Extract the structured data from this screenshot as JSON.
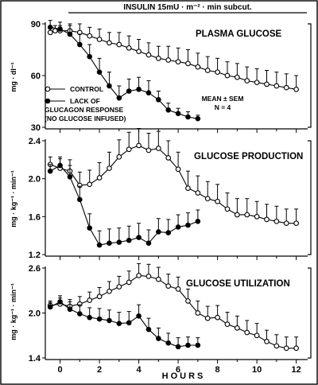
{
  "insulin_label": "INSULIN 15mU · m⁻² · min subcut.",
  "x_axis": {
    "label": "HOURS",
    "range": [
      -0.75,
      12.5
    ],
    "ticks": [
      0,
      2,
      4,
      6,
      8,
      10,
      12
    ],
    "tick_labels": [
      "0",
      "2",
      "4",
      "6",
      "8",
      "10",
      "12"
    ]
  },
  "legend": {
    "control": "CONTROL",
    "lack_line1": "LACK OF",
    "lack_line2": "GLUCAGON RESPONSE",
    "lack_line3": "(NO GLUCOSE INFUSED)"
  },
  "annotation": {
    "line1": "MEAN ± SEM",
    "line2": "N = 4"
  },
  "colors": {
    "ink": "#000000",
    "background": "#ffffff"
  },
  "chart_data": [
    {
      "type": "line",
      "title": "PLASMA GLUCOSE",
      "ylabel": "mg · dl⁻¹",
      "ylim": [
        30,
        90
      ],
      "yticks": [
        30,
        60,
        90
      ],
      "ytick_labels": [
        "30",
        "60",
        "90"
      ],
      "series": [
        {
          "name": "CONTROL",
          "marker": "open",
          "x": [
            -0.5,
            -0.25,
            0,
            0.5,
            1,
            1.5,
            2,
            2.5,
            3,
            3.5,
            4,
            4.5,
            5,
            5.5,
            6,
            6.5,
            7,
            7.5,
            8,
            8.5,
            9,
            9.5,
            10,
            10.5,
            11,
            11.5,
            12
          ],
          "y": [
            85,
            86,
            86,
            86,
            85,
            83,
            81,
            79,
            78,
            76,
            74,
            72,
            70,
            69,
            68,
            67,
            65,
            63,
            62,
            60,
            59,
            57,
            56,
            55,
            54,
            53,
            52
          ],
          "err": [
            3,
            3,
            3,
            4,
            5,
            5,
            6,
            6,
            7,
            7,
            7,
            7,
            7,
            8,
            8,
            8,
            8,
            8,
            8,
            8,
            8,
            8,
            8,
            8,
            8,
            8,
            8
          ]
        },
        {
          "name": "LACK OF GLUCAGON RESPONSE",
          "marker": "filled",
          "x": [
            -0.5,
            0,
            0.5,
            1,
            1.5,
            2,
            2.5,
            3,
            3.5,
            4,
            4.5,
            5,
            5.5,
            6,
            6.5,
            7
          ],
          "y": [
            88,
            87,
            84,
            78,
            71,
            62,
            54,
            47,
            51,
            52,
            50,
            46,
            40,
            38,
            36,
            35
          ],
          "err": [
            4,
            4,
            5,
            6,
            7,
            8,
            8,
            7,
            7,
            7,
            7,
            5,
            4,
            3,
            3,
            2
          ]
        }
      ]
    },
    {
      "type": "line",
      "title": "GLUCOSE PRODUCTION",
      "ylabel": "mg · kg⁻¹ · min⁻¹",
      "ylim": [
        1.2,
        2.4
      ],
      "yticks": [
        1.2,
        1.6,
        2.0,
        2.4
      ],
      "ytick_labels": [
        "1.2",
        "1.6",
        "2.0",
        "2.4"
      ],
      "series": [
        {
          "name": "CONTROL",
          "marker": "open",
          "x": [
            -0.5,
            0,
            0.5,
            1,
            1.5,
            2,
            2.5,
            3,
            3.5,
            4,
            4.5,
            5,
            5.5,
            6,
            6.5,
            7,
            7.5,
            8,
            8.5,
            9,
            9.5,
            10,
            10.5,
            11,
            11.5,
            12
          ],
          "y": [
            2.15,
            2.11,
            2.08,
            1.93,
            1.94,
            2.01,
            2.11,
            2.23,
            2.31,
            2.35,
            2.3,
            2.32,
            2.22,
            2.1,
            1.9,
            1.85,
            1.79,
            1.76,
            1.68,
            1.62,
            1.62,
            1.6,
            1.57,
            1.55,
            1.53,
            1.53
          ],
          "err": [
            0.08,
            0.1,
            0.12,
            0.14,
            0.15,
            0.16,
            0.17,
            0.18,
            0.18,
            0.18,
            0.18,
            0.18,
            0.18,
            0.18,
            0.18,
            0.18,
            0.18,
            0.18,
            0.17,
            0.17,
            0.17,
            0.16,
            0.16,
            0.16,
            0.15,
            0.15
          ]
        },
        {
          "name": "LACK OF GLUCAGON RESPONSE",
          "marker": "filled",
          "x": [
            -0.5,
            0,
            0.5,
            1,
            1.5,
            2,
            2.5,
            3,
            3.5,
            4,
            4.5,
            5,
            5.5,
            6,
            6.5,
            7
          ],
          "y": [
            2.08,
            2.14,
            2.02,
            1.78,
            1.48,
            1.3,
            1.32,
            1.33,
            1.35,
            1.38,
            1.32,
            1.44,
            1.43,
            1.49,
            1.51,
            1.55
          ],
          "err": [
            0.07,
            0.09,
            0.12,
            0.14,
            0.15,
            0.15,
            0.15,
            0.15,
            0.15,
            0.15,
            0.14,
            0.14,
            0.14,
            0.13,
            0.13,
            0.12
          ]
        }
      ]
    },
    {
      "type": "line",
      "title": "GLUCOSE UTILIZATION",
      "ylabel": "mg · kg⁻¹ · min⁻¹",
      "ylim": [
        1.4,
        2.6
      ],
      "yticks": [
        1.4,
        2.0,
        2.6
      ],
      "ytick_labels": [
        "1.4",
        "2.0",
        "2.6"
      ],
      "series": [
        {
          "name": "CONTROL",
          "marker": "open",
          "x": [
            -0.5,
            0,
            0.5,
            1,
            1.5,
            2,
            2.5,
            3,
            3.5,
            4,
            4.5,
            5,
            5.5,
            6,
            6.5,
            7,
            7.5,
            8,
            8.5,
            9,
            9.5,
            10,
            10.5,
            11,
            11.5,
            12
          ],
          "y": [
            2.1,
            2.12,
            2.09,
            2.12,
            2.17,
            2.22,
            2.29,
            2.35,
            2.41,
            2.5,
            2.49,
            2.45,
            2.36,
            2.32,
            2.16,
            2.0,
            1.93,
            1.94,
            1.85,
            1.8,
            1.74,
            1.7,
            1.62,
            1.56,
            1.53,
            1.53
          ],
          "err": [
            0.06,
            0.08,
            0.09,
            0.1,
            0.11,
            0.12,
            0.13,
            0.14,
            0.15,
            0.16,
            0.16,
            0.16,
            0.16,
            0.16,
            0.16,
            0.16,
            0.16,
            0.16,
            0.16,
            0.16,
            0.16,
            0.16,
            0.15,
            0.15,
            0.15,
            0.15
          ]
        },
        {
          "name": "LACK OF GLUCAGON RESPONSE",
          "marker": "filled",
          "x": [
            -0.5,
            0,
            0.5,
            1,
            1.5,
            2,
            2.5,
            3,
            3.5,
            4,
            4.5,
            5,
            5.5,
            6,
            6.5,
            7
          ],
          "y": [
            2.08,
            2.15,
            2.05,
            1.99,
            1.94,
            1.92,
            1.9,
            1.86,
            1.87,
            1.96,
            1.78,
            1.66,
            1.6,
            1.55,
            1.57,
            1.57
          ],
          "err": [
            0.06,
            0.08,
            0.1,
            0.12,
            0.13,
            0.14,
            0.14,
            0.15,
            0.15,
            0.15,
            0.15,
            0.14,
            0.13,
            0.12,
            0.11,
            0.1
          ]
        }
      ]
    }
  ]
}
